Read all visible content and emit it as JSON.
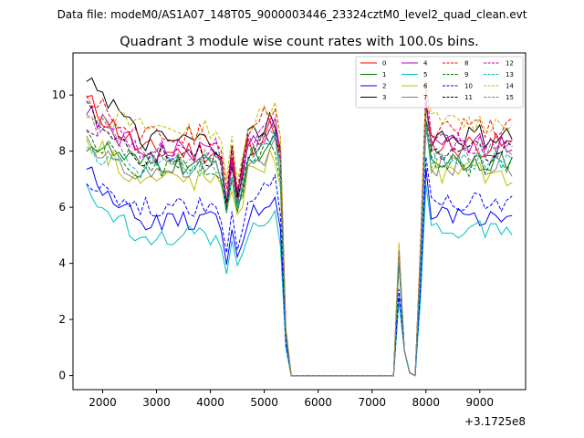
{
  "chart_data": {
    "type": "line",
    "suptitle": "Data file: modeM0/AS1A07_148T05_9000003446_23324cztM0_level2_quad_clean.evt",
    "title": "Quadrant 3 module wise count rates with 100.0s bins.",
    "xlabel": "",
    "ylabel": "",
    "x_offset_label": "+3.1725e8",
    "xlim": [
      1450,
      9850
    ],
    "ylim": [
      -0.5,
      11.5
    ],
    "xticks": [
      2000,
      3000,
      4000,
      5000,
      6000,
      7000,
      8000,
      9000
    ],
    "yticks": [
      0,
      2,
      4,
      6,
      8,
      10
    ],
    "grid": false,
    "legend_placement": "top-right",
    "legend_columns": 4,
    "series": [
      {
        "name": "0",
        "color": "#ff0000",
        "dash": "solid",
        "base": 8.0,
        "start": 9.8,
        "dip": 6.0,
        "spike": 9.1,
        "wander": 0.45
      },
      {
        "name": "1",
        "color": "#008000",
        "dash": "solid",
        "base": 7.5,
        "start": 8.3,
        "dip": 5.8,
        "spike": 8.8,
        "wander": 0.4
      },
      {
        "name": "2",
        "color": "#0000ff",
        "dash": "solid",
        "base": 5.5,
        "start": 7.3,
        "dip": 4.0,
        "spike": 7.4,
        "wander": 0.35
      },
      {
        "name": "3",
        "color": "#000000",
        "dash": "solid",
        "base": 8.3,
        "start": 10.9,
        "dip": 6.3,
        "spike": 9.7,
        "wander": 0.45
      },
      {
        "name": "4",
        "color": "#bf00bf",
        "dash": "solid",
        "base": 8.0,
        "start": 9.3,
        "dip": 6.1,
        "spike": 9.6,
        "wander": 0.45
      },
      {
        "name": "5",
        "color": "#00bfbf",
        "dash": "solid",
        "base": 5.0,
        "start": 6.5,
        "dip": 3.8,
        "spike": 6.8,
        "wander": 0.35
      },
      {
        "name": "6",
        "color": "#bfbf00",
        "dash": "solid",
        "base": 7.0,
        "start": 8.5,
        "dip": 5.8,
        "spike": 9.1,
        "wander": 0.45
      },
      {
        "name": "7",
        "color": "#808080",
        "dash": "solid",
        "base": 7.3,
        "start": 8.2,
        "dip": 5.9,
        "spike": 9.1,
        "wander": 0.45
      },
      {
        "name": "8",
        "color": "#ff0000",
        "dash": "dashed",
        "base": 8.6,
        "start": 10.1,
        "dip": 6.6,
        "spike": 10.5,
        "wander": 0.4
      },
      {
        "name": "9",
        "color": "#008000",
        "dash": "dashed",
        "base": 7.3,
        "start": 8.5,
        "dip": 5.9,
        "spike": 9.1,
        "wander": 0.4
      },
      {
        "name": "10",
        "color": "#0000ff",
        "dash": "dashed",
        "base": 6.0,
        "start": 7.0,
        "dip": 4.4,
        "spike": 7.8,
        "wander": 0.35
      },
      {
        "name": "11",
        "color": "#000000",
        "dash": "dashed",
        "base": 7.8,
        "start": 9.6,
        "dip": 6.0,
        "spike": 9.9,
        "wander": 0.4
      },
      {
        "name": "12",
        "color": "#bf00bf",
        "dash": "dashed",
        "base": 8.1,
        "start": 9.0,
        "dip": 6.4,
        "spike": 9.9,
        "wander": 0.4
      },
      {
        "name": "13",
        "color": "#00bfbf",
        "dash": "dashed",
        "base": 7.5,
        "start": 8.0,
        "dip": 6.0,
        "spike": 8.9,
        "wander": 0.4
      },
      {
        "name": "14",
        "color": "#bfbf00",
        "dash": "dashed",
        "base": 8.8,
        "start": 9.5,
        "dip": 6.8,
        "spike": 10.3,
        "wander": 0.4
      },
      {
        "name": "15",
        "color": "#808080",
        "dash": "dashed",
        "base": 7.8,
        "start": 9.2,
        "dip": 6.2,
        "spike": 9.5,
        "wander": 0.4
      }
    ]
  }
}
